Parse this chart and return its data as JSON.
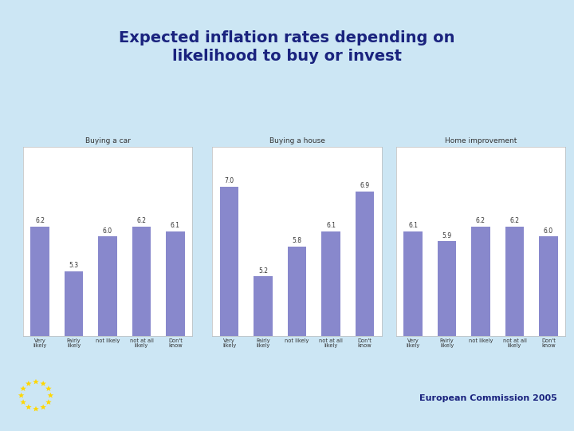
{
  "title": "Expected inflation rates depending on\nlikelihood to buy or invest",
  "title_color": "#1a237e",
  "background_color": "#cce6f4",
  "chart_bg": "#ffffff",
  "bar_color": "#8888cc",
  "charts": [
    {
      "subtitle": "Buying a car",
      "categories": [
        "Very\nlikely",
        "Fairly\nlikely",
        "not likely",
        "not at all\nlikely",
        "Don't\nknow"
      ],
      "values": [
        6.2,
        5.3,
        6.0,
        6.2,
        6.1
      ]
    },
    {
      "subtitle": "Buying a house",
      "categories": [
        "Very\nlikely",
        "Fairly\nlikely",
        "not likely",
        "not at all\nlikely",
        "Don't\nknow"
      ],
      "values": [
        7.0,
        5.2,
        5.8,
        6.1,
        6.9
      ]
    },
    {
      "subtitle": "Home improvement",
      "categories": [
        "Very\nlikely",
        "Fairly\nlikely",
        "not likely",
        "not at all\nlikely",
        "Don't\nknow"
      ],
      "values": [
        6.1,
        5.9,
        6.2,
        6.2,
        6.0
      ]
    }
  ],
  "footer_text": "European Commission 2005",
  "footer_color": "#1a237e",
  "accent_color": "#1a237e",
  "eu_star_color": "#FFD700",
  "eu_flag_blue": "#003399",
  "ymin": 4.0,
  "ymax": 7.8
}
